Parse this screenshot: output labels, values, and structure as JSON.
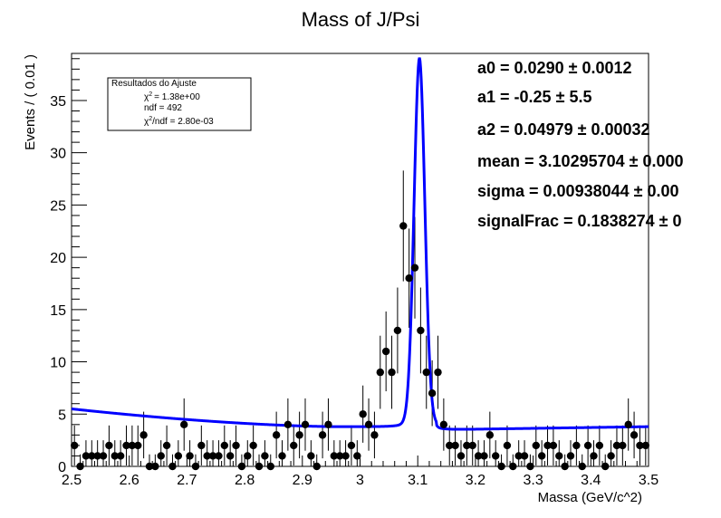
{
  "chart_data": {
    "type": "scatter",
    "title": "Mass of J/Psi",
    "xlabel": "Massa (GeV/c^2)",
    "ylabel": "Events / ( 0.01 )",
    "xlim": [
      2.5,
      3.5
    ],
    "ylim": [
      0,
      39.5
    ],
    "x_ticks": [
      "2.5",
      "2.6",
      "2.7",
      "2.8",
      "2.9",
      "3",
      "3.1",
      "3.2",
      "3.3",
      "3.4",
      "3.5"
    ],
    "y_ticks": [
      "0",
      "5",
      "10",
      "15",
      "20",
      "25",
      "30",
      "35"
    ],
    "grid": false,
    "legend": "none",
    "series": [
      {
        "kind": "points",
        "x": [
          2.505,
          2.515,
          2.525,
          2.535,
          2.545,
          2.555,
          2.565,
          2.575,
          2.585,
          2.595,
          2.605,
          2.615,
          2.625,
          2.635,
          2.645,
          2.655,
          2.665,
          2.675,
          2.685,
          2.695,
          2.705,
          2.715,
          2.725,
          2.735,
          2.745,
          2.755,
          2.765,
          2.775,
          2.785,
          2.795,
          2.805,
          2.815,
          2.825,
          2.835,
          2.845,
          2.855,
          2.865,
          2.875,
          2.885,
          2.895,
          2.905,
          2.915,
          2.925,
          2.935,
          2.945,
          2.955,
          2.965,
          2.975,
          2.985,
          2.995,
          3.005,
          3.015,
          3.025,
          3.035,
          3.045,
          3.055,
          3.065,
          3.075,
          3.085,
          3.095,
          3.105,
          3.115,
          3.125,
          3.135,
          3.145,
          3.155,
          3.165,
          3.175,
          3.185,
          3.195,
          3.205,
          3.215,
          3.225,
          3.235,
          3.245,
          3.255,
          3.265,
          3.275,
          3.285,
          3.295,
          3.305,
          3.315,
          3.325,
          3.335,
          3.345,
          3.355,
          3.365,
          3.375,
          3.385,
          3.395,
          3.405,
          3.415,
          3.425,
          3.435,
          3.445,
          3.455,
          3.465,
          3.475,
          3.485,
          3.495
        ],
        "y": [
          2,
          0,
          1,
          1,
          1,
          1,
          2,
          1,
          1,
          2,
          2,
          2,
          3,
          0,
          0,
          1,
          2,
          0,
          1,
          4,
          1,
          0,
          2,
          1,
          1,
          1,
          2,
          1,
          2,
          0,
          1,
          2,
          0,
          1,
          0,
          3,
          1,
          4,
          2,
          3,
          4,
          1,
          0,
          3,
          4,
          1,
          1,
          1,
          2,
          1,
          5,
          4,
          3,
          9,
          11,
          9,
          13,
          23,
          18,
          19,
          13,
          9,
          7,
          9,
          4,
          2,
          2,
          1,
          2,
          2,
          1,
          1,
          3,
          1,
          0,
          2,
          0,
          1,
          1,
          0,
          2,
          1,
          2,
          2,
          1,
          0,
          1,
          2,
          0,
          2,
          1,
          2,
          0,
          1,
          2,
          2,
          4,
          3,
          2,
          2
        ]
      },
      {
        "kind": "fit",
        "color": "#0000ff",
        "mean": 3.10295704,
        "sigma": 0.00938044,
        "background_start": 5.5,
        "background_min": 3.8,
        "background_min_at": 2.96,
        "background_end": 3.8,
        "peak": 37.8
      }
    ],
    "stats_box": {
      "header": "Resultados do Ajuste",
      "chi2": "= 1.38e+00",
      "ndf": "ndf = 492",
      "chi2_ndf": "/ndf = 2.80e-03"
    },
    "fit_params": [
      "a0 =  0.0290 ± 0.0012",
      "a1 = -0.25 ± 5.5",
      "a2 =  0.04979 ± 0.00032",
      "mean =  3.10295704 ± 0.000",
      "sigma =  0.00938044 ± 0.00",
      "signalFrac =  0.1838274 ± 0"
    ],
    "colors": {
      "points": "#000000",
      "fit": "#0000ff",
      "axes": "#000000"
    }
  }
}
